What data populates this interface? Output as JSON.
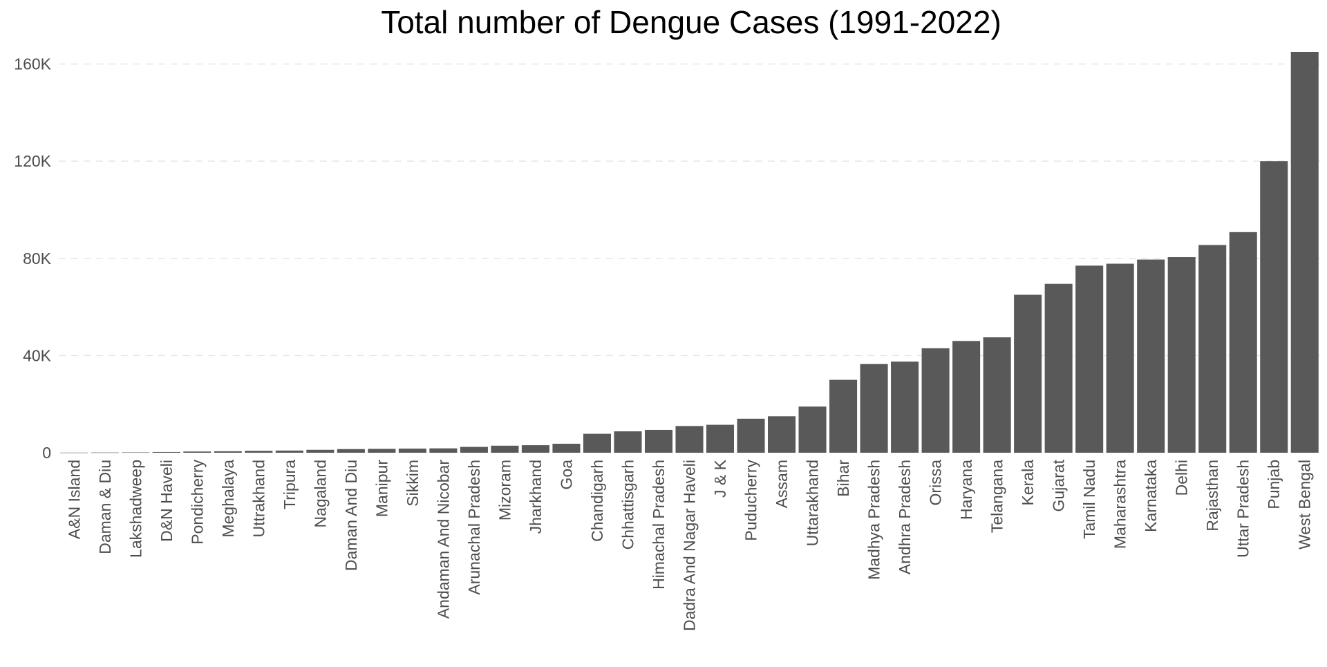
{
  "chart_data": {
    "type": "bar",
    "title": "Total number of Dengue Cases (1991-2022)",
    "xlabel": "",
    "ylabel": "",
    "ylim": [
      0,
      165000
    ],
    "y_ticks": [
      0,
      40000,
      80000,
      120000,
      160000
    ],
    "y_tick_labels": [
      "0",
      "40K",
      "80K",
      "120K",
      "160K"
    ],
    "grid": "horizontal dashed",
    "bar_color": "#595959",
    "categories": [
      "A&N Island",
      "Daman & Diu",
      "Lakshadweep",
      "D&N Haveli",
      "Pondicherry",
      "Meghalaya",
      "Uttrakhand",
      "Tripura",
      "Nagaland",
      "Daman And Diu",
      "Manipur",
      "Sikkim",
      "Andaman And Nicobar",
      "Arunachal Pradesh",
      "Mizoram",
      "Jharkhand",
      "Goa",
      "Chandigarh",
      "Chhattisgarh",
      "Himachal Pradesh",
      "Dadra And Nagar Haveli",
      "J & K",
      "Puducherry",
      "Assam",
      "Uttarakhand",
      "Bihar",
      "Madhya Pradesh",
      "Andhra Pradesh",
      "Orissa",
      "Haryana",
      "Telangana",
      "Kerala",
      "Gujarat",
      "Tamil Nadu",
      "Maharashtra",
      "Karnataka",
      "Delhi",
      "Rajasthan",
      "Uttar Pradesh",
      "Punjab",
      "West Bengal"
    ],
    "values": [
      50,
      100,
      150,
      300,
      500,
      600,
      800,
      900,
      1200,
      1500,
      1600,
      1700,
      1800,
      2400,
      2900,
      3100,
      3700,
      7800,
      8800,
      9400,
      11000,
      11500,
      14000,
      15000,
      19000,
      30000,
      36500,
      37500,
      43000,
      46000,
      47500,
      65000,
      69500,
      77000,
      77800,
      79500,
      80500,
      85500,
      90800,
      120000,
      165000
    ]
  }
}
